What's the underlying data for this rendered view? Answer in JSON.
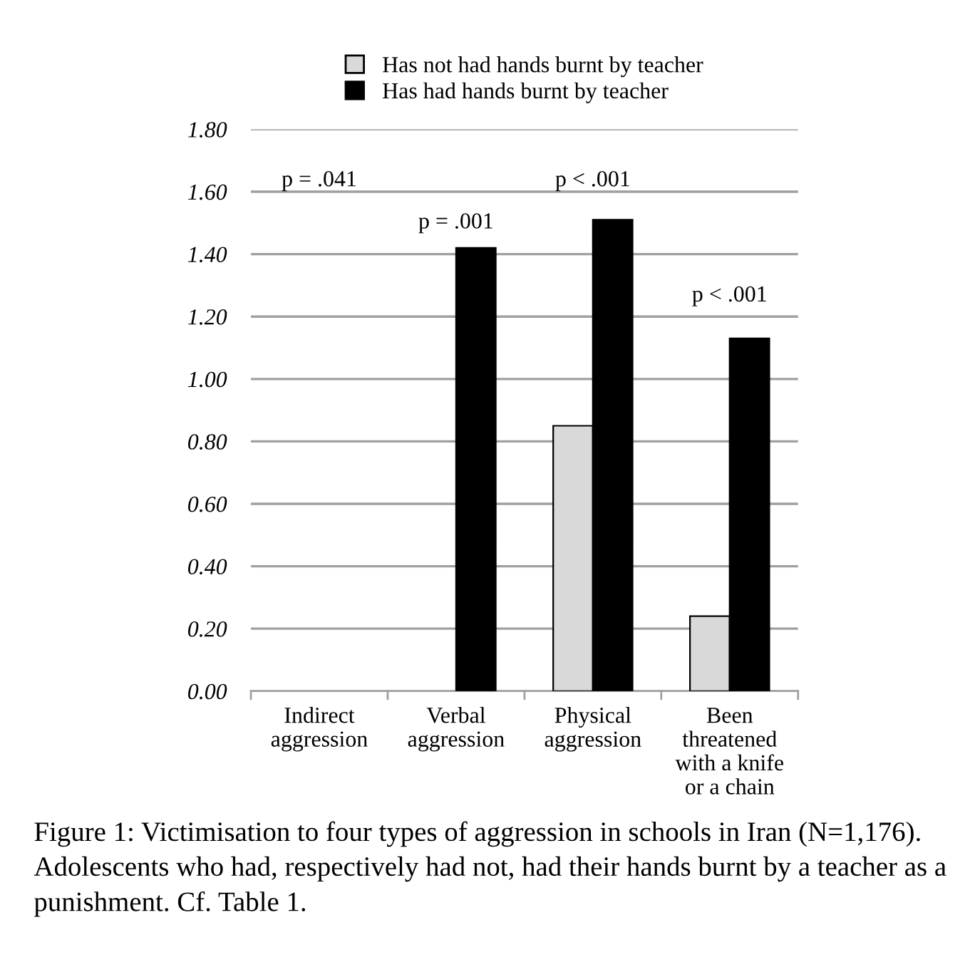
{
  "chart_data": {
    "type": "bar",
    "categories": [
      "Indirect\naggression",
      "Verbal\naggression",
      "Physical\naggression",
      "Been\nthreatened\nwith a knife\nor a chain"
    ],
    "series": [
      {
        "name": "Has not had hands burnt by teacher",
        "color": "#d9d9d9",
        "values": [
          null,
          null,
          0.85,
          0.24
        ]
      },
      {
        "name": "Has had hands burnt by teacher",
        "color": "#000000",
        "values": [
          null,
          1.42,
          1.51,
          1.13
        ]
      }
    ],
    "ylim": [
      0,
      1.8
    ],
    "yticks": [
      {
        "value": 0,
        "label": "0.00"
      },
      {
        "value": 0.2,
        "label": "0.20"
      },
      {
        "value": 0.4,
        "label": "0.40"
      },
      {
        "value": 0.6,
        "label": "0.60"
      },
      {
        "value": 0.8,
        "label": "0.80"
      },
      {
        "value": 1.0,
        "label": "1.00"
      },
      {
        "value": 1.2,
        "label": "1.20"
      },
      {
        "value": 1.4,
        "label": "1.40"
      },
      {
        "value": 1.6,
        "label": "1.60"
      },
      {
        "value": 1.8,
        "label": "1.80"
      }
    ],
    "grid": "y",
    "legend": "top",
    "annotations": [
      "p = .041",
      "p = .001",
      "p < .001",
      "p < .001",
      "Figure 1: Victimisation to four types of aggression in schools in Iran (N=1,176). Adolescents who had, respectively had not, had their hands burnt by a teacher as a punishment. Cf. Table 1."
    ]
  }
}
